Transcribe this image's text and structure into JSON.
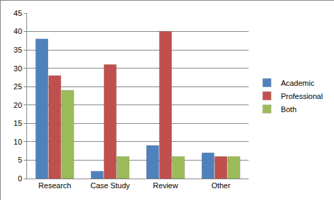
{
  "chart_data": {
    "type": "bar",
    "categories": [
      "Research",
      "Case Study",
      "Review",
      "Other"
    ],
    "series": [
      {
        "name": "Academic",
        "color": "#4f81bd",
        "values": [
          38,
          2,
          9,
          7
        ]
      },
      {
        "name": "Professional",
        "color": "#c0504d",
        "values": [
          28,
          31,
          40,
          6
        ]
      },
      {
        "name": "Both",
        "color": "#9bbb59",
        "values": [
          24,
          6,
          6,
          6
        ]
      }
    ],
    "ylim": [
      0,
      45
    ],
    "yticks": [
      0,
      5,
      10,
      15,
      20,
      25,
      30,
      35,
      40,
      45
    ],
    "grid": true,
    "legend": "right"
  }
}
